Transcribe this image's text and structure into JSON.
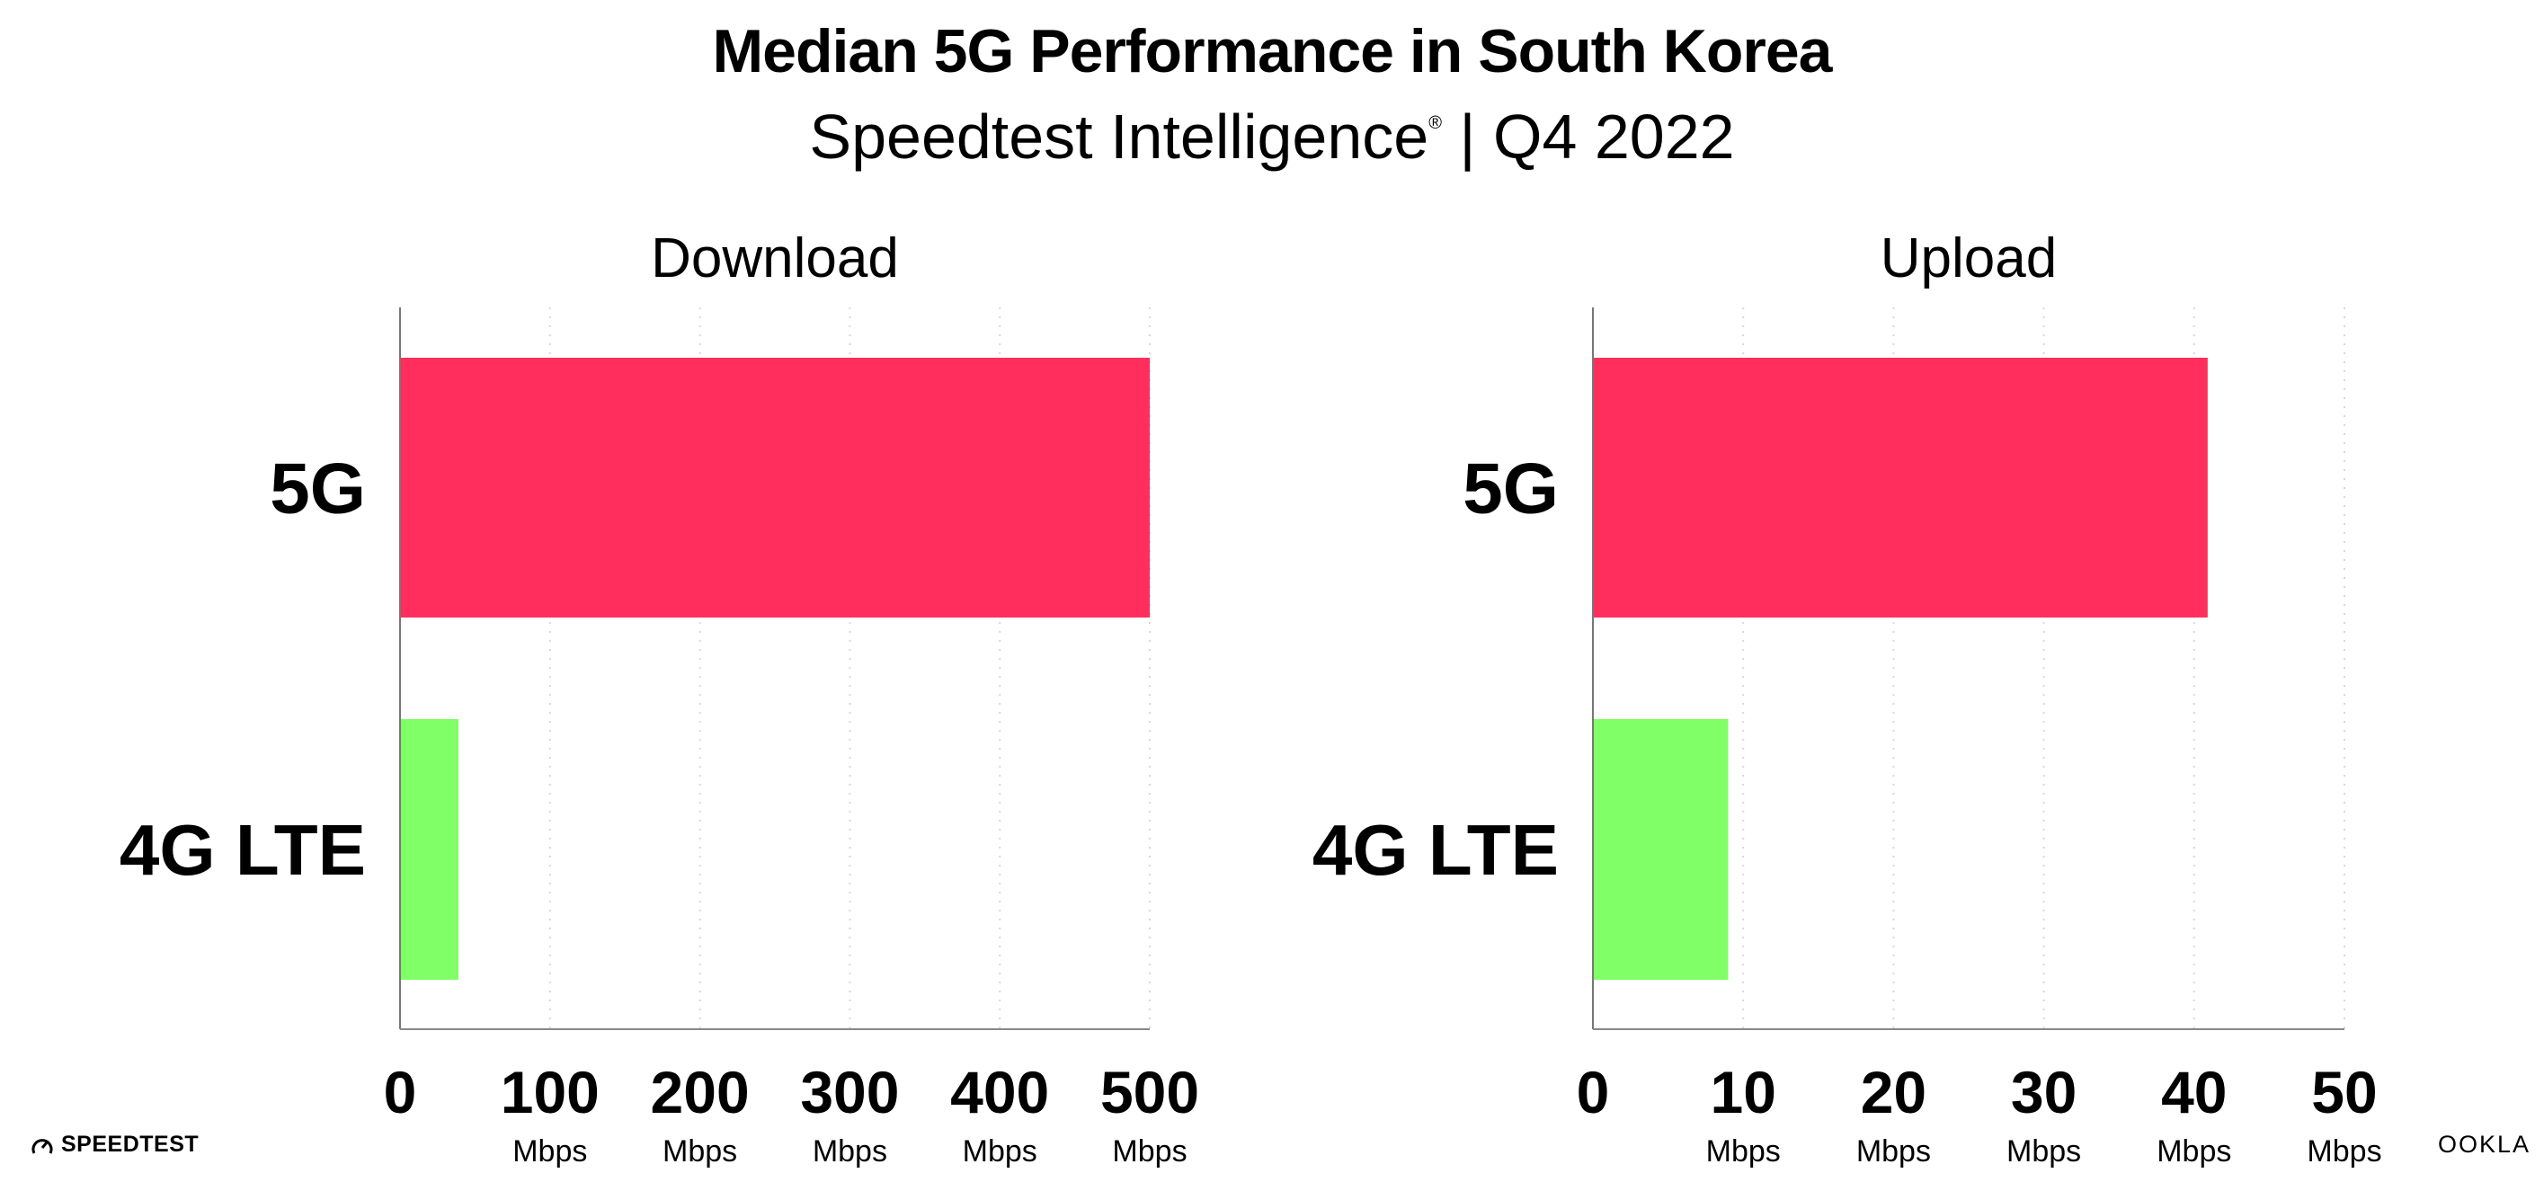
{
  "title": "Median 5G Performance in South Korea",
  "subtitle": "Speedtest Intelligence",
  "subtitle_mark": "®",
  "subtitle_period": "| Q4 2022",
  "colors": {
    "5G": "#ff2e5c",
    "4G LTE": "#80ff66"
  },
  "chart_data": [
    {
      "type": "bar",
      "orientation": "horizontal",
      "title": "Download",
      "categories": [
        "5G",
        "4G LTE"
      ],
      "values": [
        500,
        39
      ],
      "xlim": [
        0,
        500
      ],
      "xticks": [
        "0",
        "100",
        "200",
        "300",
        "400",
        "500"
      ],
      "tick_unit": "Mbps",
      "grid": "dotted vertical"
    },
    {
      "type": "bar",
      "orientation": "horizontal",
      "title": "Upload",
      "categories": [
        "5G",
        "4G LTE"
      ],
      "values": [
        40.9,
        9.0
      ],
      "xlim": [
        0,
        50
      ],
      "xticks": [
        "0",
        "10",
        "20",
        "30",
        "40",
        "50"
      ],
      "tick_unit": "Mbps",
      "grid": "dotted vertical"
    }
  ],
  "footer": {
    "left_logo": "SPEEDTEST",
    "right_logo": "OOKLA"
  }
}
